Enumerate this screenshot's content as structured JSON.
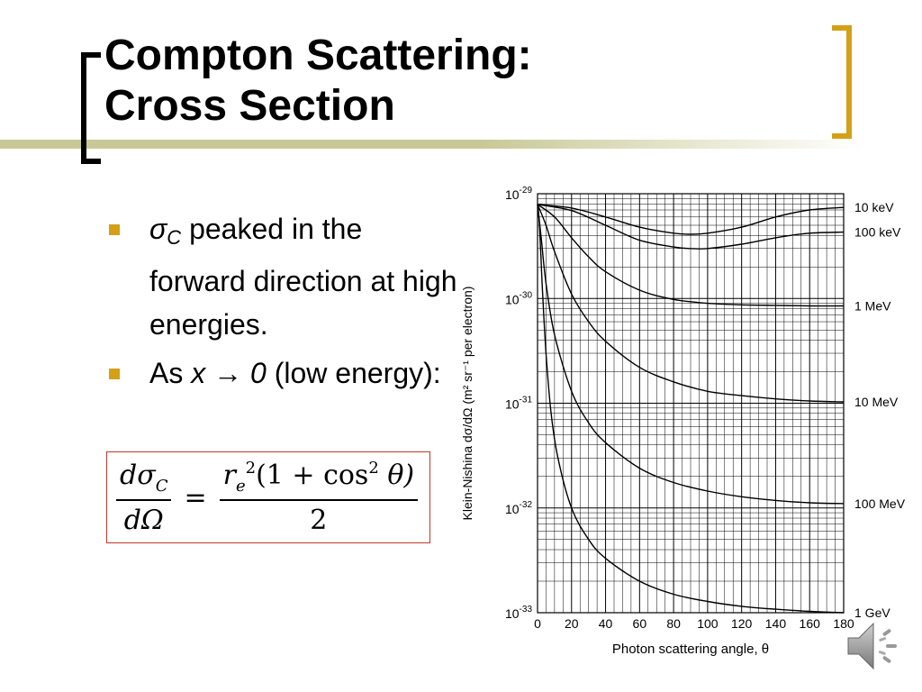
{
  "slide": {
    "title_line1": "Compton Scattering:",
    "title_line2": "Cross Section"
  },
  "bullets": [
    {
      "sym": "σ",
      "sub": "C",
      "text": " peaked in the forward direction at high energies."
    },
    {
      "pre": "As ",
      "expr": "x → 0",
      "text": "  (low energy):"
    }
  ],
  "formula": {
    "lhs_num": "dσ",
    "lhs_num_sub": "C",
    "lhs_den": "dΩ",
    "eq": "=",
    "rhs_num_pre": "r",
    "rhs_num_sub": "e",
    "rhs_num_sup": "2",
    "rhs_num_mid": "(1 + cos",
    "rhs_num_sup2": "2",
    "rhs_num_post": " θ)",
    "rhs_den": "2"
  },
  "colors": {
    "accent_gold": "#d4a017",
    "title_line": "#c8c896",
    "formula_border": "#c0392b"
  },
  "icons": [
    "speaker-icon"
  ],
  "chart_data": {
    "type": "line",
    "xlabel": "Photon scattering angle, θ",
    "ylabel": "Klein-Nishina dσ/dΩ (m² sr⁻¹ per electron)",
    "x_ticks": [
      0,
      20,
      40,
      60,
      80,
      100,
      120,
      140,
      160,
      180
    ],
    "xlim": [
      0,
      180
    ],
    "y_scale": "log",
    "ylim": [
      1e-33,
      1e-29
    ],
    "y_tick_labels": [
      {
        "base": "10",
        "exp": "-29"
      },
      {
        "base": "10",
        "exp": "-30"
      },
      {
        "base": "10",
        "exp": "-31"
      },
      {
        "base": "10",
        "exp": "-32"
      },
      {
        "base": "10",
        "exp": "-33"
      }
    ],
    "grid": true,
    "legend": "right-edge labels",
    "series": [
      {
        "name": "10 keV",
        "x": [
          0,
          20,
          40,
          60,
          80,
          90,
          100,
          120,
          140,
          160,
          180
        ],
        "y": [
          7.9e-30,
          7.3e-30,
          6e-30,
          4.8e-30,
          4.2e-30,
          4.1e-30,
          4.2e-30,
          4.8e-30,
          6e-30,
          7e-30,
          7.4e-30
        ]
      },
      {
        "name": "100 keV",
        "x": [
          0,
          20,
          40,
          60,
          80,
          90,
          100,
          120,
          140,
          160,
          180
        ],
        "y": [
          7.9e-30,
          6.9e-30,
          5e-30,
          3.6e-30,
          3.1e-30,
          3e-30,
          3e-30,
          3.3e-30,
          3.8e-30,
          4.2e-30,
          4.3e-30
        ]
      },
      {
        "name": "1 MeV",
        "x": [
          0,
          10,
          20,
          30,
          40,
          60,
          80,
          100,
          120,
          140,
          160,
          180
        ],
        "y": [
          7.9e-30,
          6e-30,
          3.8e-30,
          2.5e-30,
          1.8e-30,
          1.2e-30,
          9.8e-31,
          9e-31,
          8.7e-31,
          8.6e-31,
          8.5e-31,
          8.5e-31
        ]
      },
      {
        "name": "10 MeV",
        "x": [
          0,
          5,
          10,
          20,
          30,
          40,
          60,
          80,
          100,
          120,
          140,
          160,
          180
        ],
        "y": [
          7.9e-30,
          5e-30,
          2.8e-30,
          1.1e-30,
          6e-31,
          3.9e-31,
          2.2e-31,
          1.6e-31,
          1.3e-31,
          1.18e-31,
          1.1e-31,
          1.05e-31,
          1.03e-31
        ]
      },
      {
        "name": "100 MeV",
        "x": [
          0,
          2,
          5,
          10,
          20,
          30,
          40,
          60,
          80,
          100,
          120,
          140,
          160,
          180
        ],
        "y": [
          7.9e-30,
          4e-30,
          1.4e-30,
          4.5e-31,
          1.3e-31,
          6.5e-32,
          4.2e-32,
          2.4e-32,
          1.75e-32,
          1.45e-32,
          1.28e-32,
          1.18e-32,
          1.12e-32,
          1.1e-32
        ]
      },
      {
        "name": "1 GeV",
        "x": [
          0,
          1,
          2,
          3,
          5,
          8,
          12,
          20,
          30,
          40,
          60,
          80,
          100,
          120,
          140,
          160,
          180
        ],
        "y": [
          7.9e-30,
          5.5e-30,
          2.5e-30,
          1.1e-30,
          3e-31,
          8e-32,
          3e-32,
          1e-32,
          5e-33,
          3.3e-33,
          2e-33,
          1.5e-33,
          1.28e-33,
          1.15e-33,
          1.08e-33,
          1.03e-33,
          1e-33
        ]
      }
    ]
  }
}
